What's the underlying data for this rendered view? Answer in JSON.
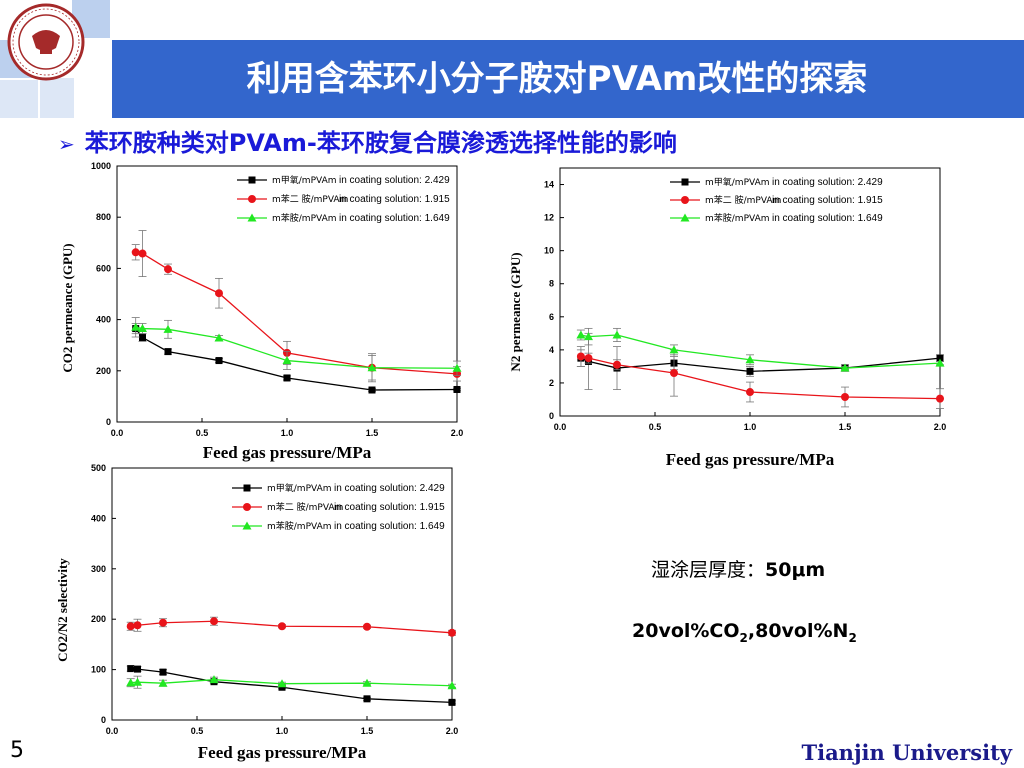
{
  "header": {
    "title": "利用含苯环小分子胺对PVAm改性的探索",
    "title_bar_color": "#3366cc",
    "logo_icon": "tianjin-university-seal-icon"
  },
  "subtitle": {
    "bullet_icon": "arrow-bullet-icon",
    "text": "苯环胺种类对PVAm-苯环胺复合膜渗透选择性能的影响"
  },
  "notes": {
    "thickness_label": "湿涂层厚度：",
    "thickness_value": "50μm",
    "gas_prefix": "20vol%CO",
    "gas_sub1": "2",
    "gas_mid": ",80vol%N",
    "gas_sub2": "2"
  },
  "footer": {
    "page_number": "5",
    "brand": "Tianjin University"
  },
  "chart_data": [
    {
      "type": "line",
      "id": "co2",
      "ylabel": "CO2 permeance (GPU)",
      "xlabel": "Feed gas pressure/MPa",
      "xlim": [
        0,
        2.0
      ],
      "ylim": [
        0,
        1000
      ],
      "xticks": [
        "0.0",
        "0.5",
        "1.0",
        "1.5",
        "2.0"
      ],
      "yticks": [
        "0",
        "200",
        "400",
        "600",
        "800",
        "1000"
      ],
      "legend_position": "top-right",
      "series": [
        {
          "name": "m甲氧/mPVAm",
          "legend_note": "in coating solution: 2.429",
          "color": "#000000",
          "marker": "square",
          "x": [
            0.11,
            0.15,
            0.3,
            0.6,
            1.0,
            1.5,
            2.0
          ],
          "y": [
            365,
            330,
            275,
            240,
            172,
            125,
            127
          ],
          "err": [
            20,
            15,
            10,
            8,
            8,
            5,
            5
          ]
        },
        {
          "name": "m苯二 胺/mPVAm",
          "legend_note": "in coating solution: 1.915",
          "color": "#e8141a",
          "marker": "circle",
          "x": [
            0.11,
            0.15,
            0.3,
            0.6,
            1.0,
            1.5,
            2.0
          ],
          "y": [
            663,
            658,
            597,
            503,
            270,
            212,
            188
          ],
          "err": [
            30,
            90,
            20,
            58,
            45,
            48,
            28
          ]
        },
        {
          "name": "m苯胺/mPVAm",
          "legend_note": "in coating solution: 1.649",
          "color": "#22e822",
          "marker": "triangle",
          "x": [
            0.11,
            0.15,
            0.3,
            0.6,
            1.0,
            1.5,
            2.0
          ],
          "y": [
            370,
            365,
            362,
            328,
            240,
            212,
            210
          ],
          "err": [
            38,
            20,
            35,
            10,
            35,
            55,
            28
          ]
        }
      ]
    },
    {
      "type": "line",
      "id": "n2",
      "ylabel": "N2 permeance (GPU)",
      "xlabel": "Feed gas pressure/MPa",
      "xlim": [
        0,
        2.0
      ],
      "ylim": [
        0,
        15
      ],
      "xticks": [
        "0.0",
        "0.5",
        "1.0",
        "1.5",
        "2.0"
      ],
      "yticks": [
        "0",
        "2",
        "4",
        "6",
        "8",
        "10",
        "12",
        "14"
      ],
      "legend_position": "top-right",
      "series": [
        {
          "name": "m甲氧/mPVAm",
          "legend_note": "in coating solution: 2.429",
          "color": "#000000",
          "marker": "square",
          "x": [
            0.11,
            0.15,
            0.3,
            0.6,
            1.0,
            1.5,
            2.0
          ],
          "y": [
            3.5,
            3.3,
            2.9,
            3.2,
            2.7,
            2.9,
            3.5
          ],
          "err": [
            0.5,
            1.7,
            1.3,
            0.4,
            0.3,
            0.2,
            0.2
          ]
        },
        {
          "name": "m苯二 胺/mPVAm",
          "legend_note": "in coating solution: 1.915",
          "color": "#e8141a",
          "marker": "circle",
          "x": [
            0.11,
            0.15,
            0.3,
            0.6,
            1.0,
            1.5,
            2.0
          ],
          "y": [
            3.6,
            3.5,
            3.1,
            2.6,
            1.45,
            1.15,
            1.05
          ],
          "err": [
            0.6,
            0.3,
            0.3,
            1.4,
            0.6,
            0.6,
            0.6
          ]
        },
        {
          "name": "m苯胺/mPVAm",
          "legend_note": "in coating solution: 1.649",
          "color": "#22e822",
          "marker": "triangle",
          "x": [
            0.11,
            0.15,
            0.3,
            0.6,
            1.0,
            1.5,
            2.0
          ],
          "y": [
            4.9,
            4.8,
            4.9,
            4.0,
            3.4,
            2.9,
            3.2
          ],
          "err": [
            0.3,
            0.5,
            0.4,
            0.3,
            0.3,
            0.1,
            0.1
          ]
        }
      ]
    },
    {
      "type": "line",
      "id": "sel",
      "ylabel": "CO2/N2 selectivity",
      "xlabel": "Feed gas pressure/MPa",
      "xlim": [
        0,
        2.0
      ],
      "ylim": [
        0,
        500
      ],
      "xticks": [
        "0.0",
        "0.5",
        "1.0",
        "1.5",
        "2.0"
      ],
      "yticks": [
        "0",
        "100",
        "200",
        "300",
        "400",
        "500"
      ],
      "legend_position": "top-right",
      "series": [
        {
          "name": "m甲氧/mPVAm",
          "legend_note": "in coating solution: 2.429",
          "color": "#000000",
          "marker": "square",
          "x": [
            0.11,
            0.15,
            0.3,
            0.6,
            1.0,
            1.5,
            2.0
          ],
          "y": [
            102,
            101,
            95,
            76,
            65,
            42,
            35
          ],
          "err": [
            5,
            5,
            5,
            3,
            3,
            3,
            3
          ]
        },
        {
          "name": "m苯二 胺/mPVAm",
          "legend_note": "in coating solution: 1.915",
          "color": "#e8141a",
          "marker": "circle",
          "x": [
            0.11,
            0.15,
            0.3,
            0.6,
            1.0,
            1.5,
            2.0
          ],
          "y": [
            186,
            188,
            193,
            196,
            186,
            185,
            173
          ],
          "err": [
            8,
            12,
            8,
            8,
            3,
            3,
            5
          ]
        },
        {
          "name": "m苯胺/mPVAm",
          "legend_note": "in coating solution: 1.649",
          "color": "#22e822",
          "marker": "triangle",
          "x": [
            0.11,
            0.15,
            0.3,
            0.6,
            1.0,
            1.5,
            2.0
          ],
          "y": [
            74,
            75,
            73,
            80,
            72,
            73,
            68
          ],
          "err": [
            8,
            12,
            6,
            5,
            3,
            3,
            3
          ]
        }
      ]
    }
  ]
}
